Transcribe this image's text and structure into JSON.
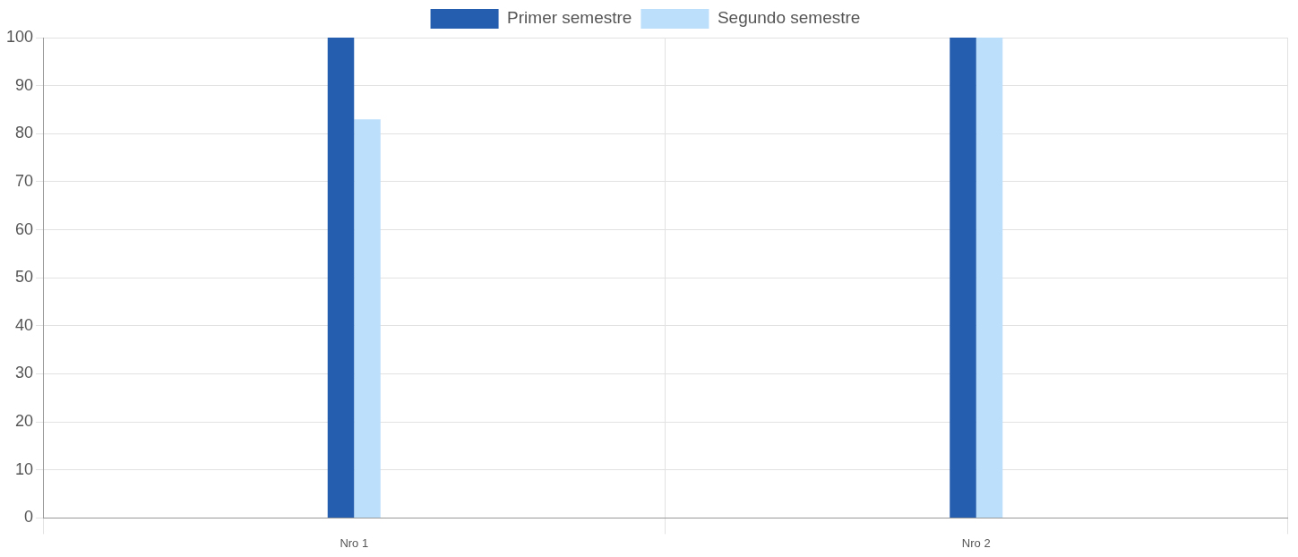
{
  "chart_data": {
    "type": "bar",
    "categories": [
      "Nro 1",
      "Nro 2"
    ],
    "series": [
      {
        "name": "Primer semestre",
        "color": "#255eae",
        "values": [
          100,
          100
        ]
      },
      {
        "name": "Segundo semestre",
        "color": "#bcdffb",
        "values": [
          83,
          100
        ]
      }
    ],
    "ylim": [
      0,
      100
    ],
    "yticks": [
      0,
      10,
      20,
      30,
      40,
      50,
      60,
      70,
      80,
      90,
      100
    ],
    "grid": true,
    "legend": "top"
  }
}
